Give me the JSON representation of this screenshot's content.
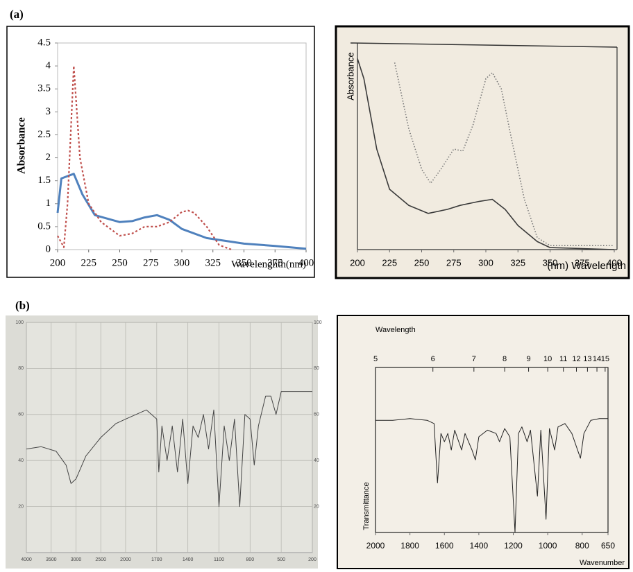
{
  "figure": {
    "labels": [
      "(a)",
      "(b)"
    ]
  },
  "chart_data": [
    {
      "type": "line",
      "y_label": "Absorbance",
      "x_label": "Wavelenghth(nm)",
      "xlim": [
        200,
        400
      ],
      "xticks": [
        200,
        225,
        250,
        275,
        300,
        325,
        350,
        375,
        400
      ],
      "ylim": [
        0,
        4.5
      ],
      "yticks": [
        0,
        0.5,
        1,
        1.5,
        2,
        2.5,
        3,
        3.5,
        4,
        4.5
      ],
      "series": [
        {
          "color": "#4f81bd",
          "style": "solid",
          "x": [
            200,
            203,
            213,
            220,
            230,
            250,
            260,
            270,
            280,
            290,
            300,
            320,
            350,
            375,
            400
          ],
          "values": [
            0.8,
            1.55,
            1.65,
            1.2,
            0.75,
            0.6,
            0.62,
            0.7,
            0.75,
            0.65,
            0.45,
            0.25,
            0.13,
            0.08,
            0.02
          ]
        },
        {
          "color": "#c0504d",
          "style": "dotted",
          "x": [
            200,
            205,
            208,
            213,
            218,
            225,
            235,
            250,
            260,
            270,
            280,
            290,
            300,
            305,
            310,
            320,
            330,
            340
          ],
          "values": [
            0.3,
            0.05,
            1.0,
            4.0,
            2.0,
            1.0,
            0.6,
            0.3,
            0.35,
            0.5,
            0.5,
            0.6,
            0.82,
            0.85,
            0.8,
            0.5,
            0.1,
            0.0
          ]
        }
      ]
    },
    {
      "type": "line",
      "y_label": "Absorbance",
      "x_label": "(nm) Wavelength",
      "xlim": [
        200,
        400
      ],
      "xticks": [
        200,
        225,
        250,
        275,
        300,
        325,
        350,
        375,
        400
      ],
      "ylim": [
        0,
        1
      ],
      "series": [
        {
          "color": "#3a3a3a",
          "style": "solid",
          "x": [
            200,
            205,
            215,
            225,
            240,
            255,
            270,
            280,
            295,
            305,
            315,
            325,
            340,
            350,
            400
          ],
          "values": [
            0.95,
            0.85,
            0.5,
            0.3,
            0.22,
            0.18,
            0.2,
            0.22,
            0.24,
            0.25,
            0.2,
            0.12,
            0.04,
            0.01,
            0
          ]
        },
        {
          "color": "#777777",
          "style": "dotted",
          "x": [
            229,
            240,
            250,
            257,
            265,
            275,
            282,
            290,
            300,
            305,
            312,
            320,
            330,
            340,
            350,
            400
          ],
          "values": [
            0.93,
            0.6,
            0.4,
            0.33,
            0.4,
            0.5,
            0.49,
            0.62,
            0.85,
            0.88,
            0.8,
            0.55,
            0.25,
            0.06,
            0.02,
            0.02
          ]
        }
      ]
    },
    {
      "type": "line",
      "xlim": [
        4000,
        200
      ],
      "x_break": 2000,
      "xticks": [
        4000,
        3500,
        3000,
        2500,
        2000,
        1700,
        1400,
        1100,
        800,
        500,
        200
      ],
      "ylim": [
        0,
        100
      ],
      "yticks": [
        20,
        40,
        60,
        80,
        100
      ],
      "grid": true,
      "series": [
        {
          "color": "#444444",
          "style": "solid",
          "x": [
            4000,
            3700,
            3400,
            3200,
            3100,
            3000,
            2800,
            2500,
            2200,
            2000,
            1800,
            1700,
            1680,
            1650,
            1600,
            1550,
            1500,
            1450,
            1400,
            1350,
            1300,
            1250,
            1200,
            1150,
            1100,
            1050,
            1000,
            950,
            900,
            850,
            800,
            760,
            720,
            650,
            600,
            550,
            500,
            400,
            200
          ],
          "values": [
            45,
            46,
            44,
            38,
            30,
            32,
            42,
            50,
            56,
            58,
            62,
            58,
            35,
            55,
            40,
            55,
            35,
            58,
            30,
            55,
            50,
            60,
            45,
            62,
            20,
            55,
            40,
            58,
            20,
            60,
            58,
            38,
            55,
            68,
            68,
            60,
            70,
            70,
            70
          ]
        }
      ]
    },
    {
      "type": "line",
      "x_label": "Wavenumber",
      "y_label": "Transmittance",
      "xlim": [
        2000,
        650
      ],
      "xticks": [
        2000,
        1800,
        1600,
        1400,
        1200,
        1000,
        800,
        650
      ],
      "ylim": [
        0,
        1
      ],
      "top_axis": {
        "label": "Wavelength",
        "ticks": [
          5,
          6,
          7,
          8,
          9,
          10,
          11,
          12,
          13,
          14,
          15
        ]
      },
      "series": [
        {
          "color": "#222222",
          "style": "solid",
          "x": [
            2000,
            1900,
            1800,
            1700,
            1660,
            1640,
            1620,
            1600,
            1580,
            1560,
            1540,
            1500,
            1480,
            1440,
            1420,
            1400,
            1350,
            1300,
            1280,
            1250,
            1220,
            1190,
            1170,
            1150,
            1120,
            1100,
            1060,
            1040,
            1010,
            990,
            960,
            940,
            900,
            860,
            820,
            810,
            790,
            750,
            700,
            650
          ],
          "values": [
            0.68,
            0.68,
            0.69,
            0.68,
            0.66,
            0.3,
            0.6,
            0.55,
            0.6,
            0.5,
            0.62,
            0.5,
            0.6,
            0.5,
            0.44,
            0.58,
            0.62,
            0.6,
            0.55,
            0.63,
            0.58,
            0.0,
            0.6,
            0.64,
            0.55,
            0.62,
            0.22,
            0.62,
            0.08,
            0.63,
            0.5,
            0.64,
            0.66,
            0.6,
            0.48,
            0.45,
            0.6,
            0.68,
            0.69,
            0.69
          ]
        }
      ]
    }
  ]
}
